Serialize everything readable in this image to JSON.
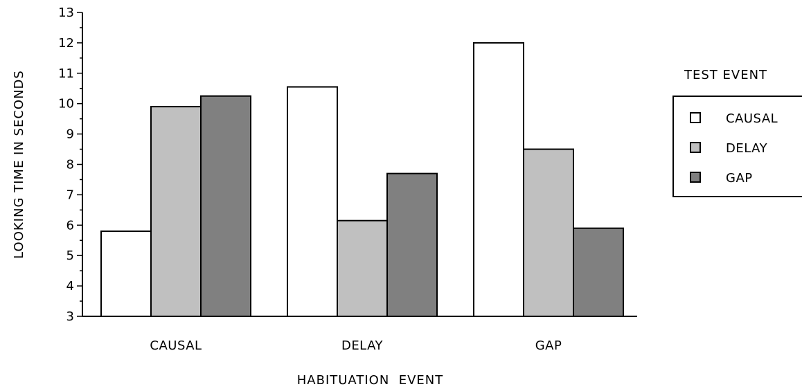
{
  "chart_data": {
    "type": "bar",
    "xlabel": "HABITUATION  EVENT",
    "ylabel": "LOOKING TIME IN SECONDS",
    "ylim": [
      3,
      13
    ],
    "yticks": [
      "3",
      "4",
      "5",
      "6",
      "7",
      "8",
      "9",
      "10",
      "11",
      "12",
      "13"
    ],
    "categories": [
      "CAUSAL",
      "DELAY",
      "GAP"
    ],
    "legend_title": "TEST EVENT",
    "legend_position": "right",
    "grid": false,
    "series": [
      {
        "name": "CAUSAL",
        "color": "#ffffff",
        "values": [
          5.8,
          10.55,
          12.0
        ]
      },
      {
        "name": "DELAY",
        "color": "#c0c0c0",
        "values": [
          9.9,
          6.15,
          8.5
        ]
      },
      {
        "name": "GAP",
        "color": "#808080",
        "values": [
          10.25,
          7.7,
          5.9
        ]
      }
    ]
  }
}
